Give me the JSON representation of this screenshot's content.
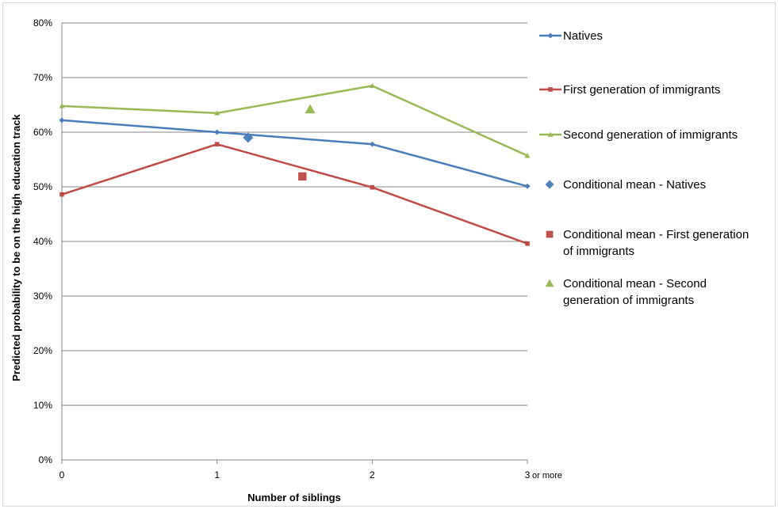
{
  "chart_data": {
    "type": "line",
    "x": [
      0,
      1,
      2,
      3
    ],
    "x_tick_labels": [
      "0",
      "1",
      "2",
      "3"
    ],
    "x_last_tick_suffix": "or more",
    "xlabel": "Number of siblings",
    "ylabel": "Predicted probability to be on the high education track",
    "ylim": [
      0,
      80
    ],
    "y_ticks": [
      0,
      10,
      20,
      30,
      40,
      50,
      60,
      70,
      80
    ],
    "y_tick_labels": [
      "0%",
      "10%",
      "20%",
      "30%",
      "40%",
      "50%",
      "60%",
      "70%",
      "80%"
    ],
    "grid": true,
    "legend_position": "right",
    "series": [
      {
        "name": "Natives",
        "kind": "line",
        "marker": "diamond",
        "color": "#4a7ebb",
        "x": [
          0,
          1,
          2,
          3
        ],
        "values": [
          62.2,
          60.0,
          57.8,
          50.1
        ]
      },
      {
        "name": "First generation of immigrants",
        "kind": "line",
        "marker": "square",
        "color": "#be4b48",
        "x": [
          0,
          1,
          2,
          3
        ],
        "values": [
          48.6,
          57.8,
          49.9,
          39.6
        ]
      },
      {
        "name": "Second generation of immigrants",
        "kind": "line",
        "marker": "triangle",
        "color": "#98b954",
        "x": [
          0,
          1,
          2,
          3
        ],
        "values": [
          64.8,
          63.5,
          68.5,
          55.7
        ]
      },
      {
        "name": "Conditional mean - Natives",
        "kind": "point",
        "marker": "diamond",
        "color": "#4f81bd",
        "x": [
          1.2
        ],
        "values": [
          59.0
        ]
      },
      {
        "name": "Conditional mean - First generation of immigrants",
        "kind": "point",
        "marker": "square",
        "color": "#c0504d",
        "x": [
          1.55
        ],
        "values": [
          51.9
        ]
      },
      {
        "name": "Conditional mean - Second generation of immigrants",
        "kind": "point",
        "marker": "triangle",
        "color": "#9bbb59",
        "x": [
          1.6
        ],
        "values": [
          64.2
        ]
      }
    ]
  }
}
